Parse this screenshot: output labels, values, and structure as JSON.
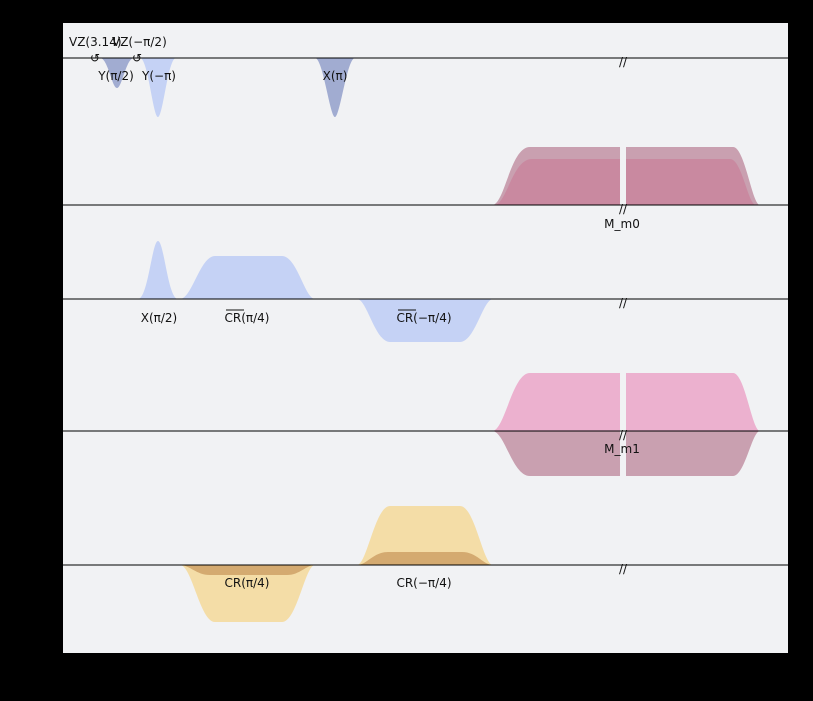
{
  "colors": {
    "background": "#000000",
    "panel": "#f1f2f4",
    "baseline": "#000000",
    "drive_dark": "#8d9ac8",
    "drive_light": "#c5d2f5",
    "measure_d": "#c9869f",
    "measure_d_light": "#c9a0b0",
    "control_u": "#c5d2f5",
    "measure_m1": "#ecb1cf",
    "measure_m1_low": "#c9a0b0",
    "cr_light": "#f4dda7",
    "cr_dark": "#d4aa70"
  },
  "channels": [
    {
      "id": "d0",
      "annotations": [
        "VZ(3.14)",
        "VZ(−π/2)",
        "Y(π/2)",
        "Y(−π)",
        "X(π)"
      ]
    },
    {
      "id": "m0",
      "annotations": [
        "M_m0"
      ]
    },
    {
      "id": "u0",
      "annotations": [
        "X(π/2)",
        "CR(π/4)",
        "CR(−π/4)"
      ]
    },
    {
      "id": "m1",
      "annotations": [
        "M_m1"
      ]
    },
    {
      "id": "u1",
      "annotations": [
        "CR(π/4)",
        "CR(−π/4)"
      ]
    }
  ],
  "break_marker": "//",
  "phase_icon": "rotate-ccw-icon"
}
